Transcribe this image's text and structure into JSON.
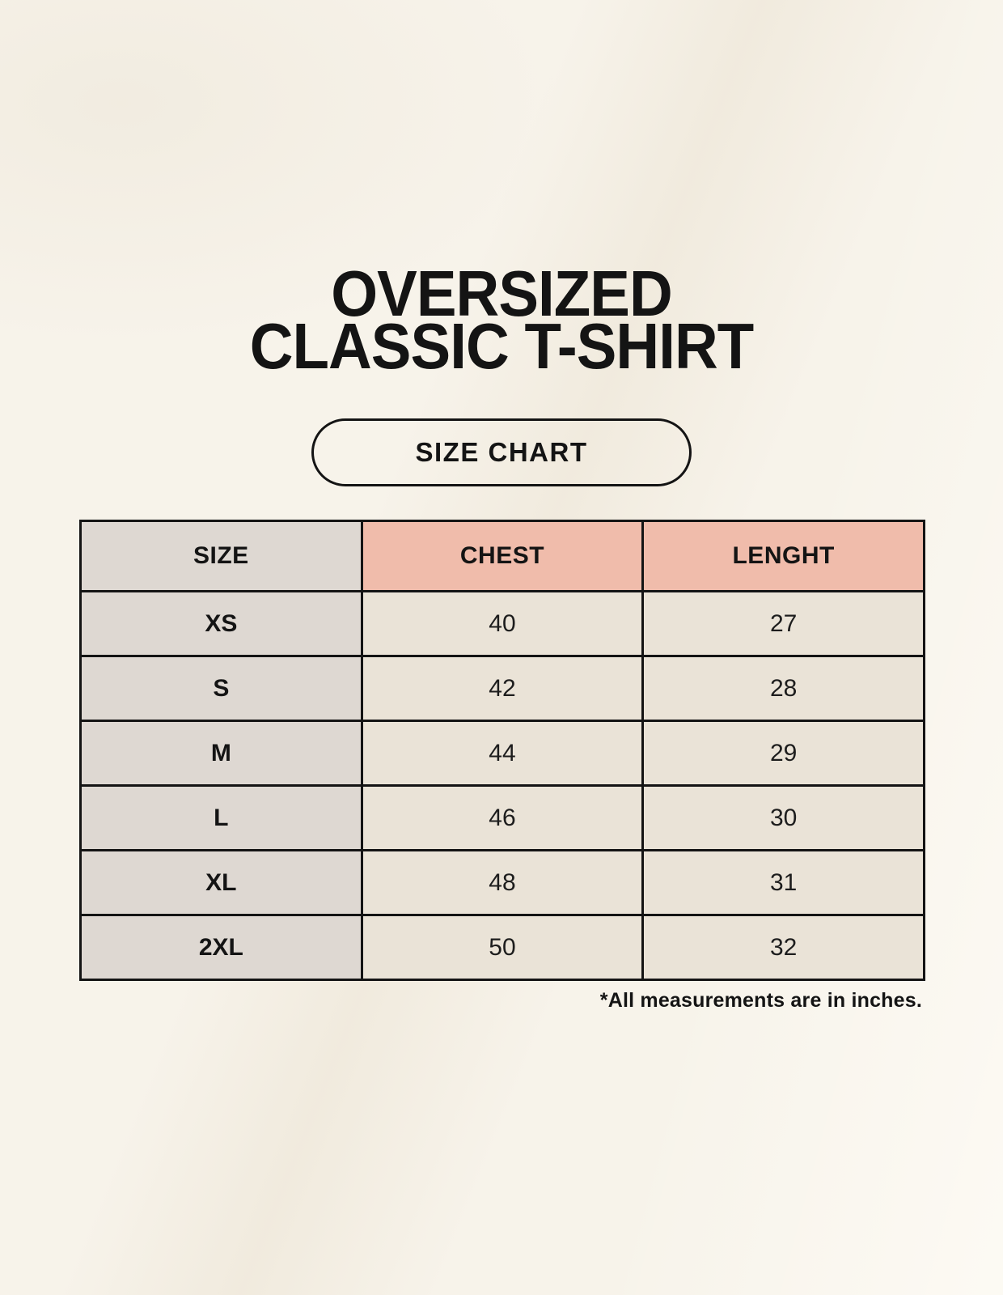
{
  "page": {
    "title_line1": "OVERSIZED",
    "title_line2": "CLASSIC T-SHIRT",
    "size_chart_button": "SIZE CHART",
    "footnote": "*All measurements are in inches."
  },
  "colors": {
    "background": "#f7f3ea",
    "accent_salmon": "#f0bcab",
    "gray_column": "#ded8d2",
    "cream_cell": "#eae3d7",
    "table_border": "#141414",
    "text": "#141414"
  },
  "chart_data": {
    "type": "table",
    "title": "OVERSIZED CLASSIC T-SHIRT",
    "subtitle": "SIZE CHART",
    "columns": [
      "SIZE",
      "CHEST",
      "LENGHT"
    ],
    "rows": [
      [
        "XS",
        40,
        27
      ],
      [
        "S",
        42,
        28
      ],
      [
        "M",
        44,
        29
      ],
      [
        "L",
        46,
        30
      ],
      [
        "XL",
        48,
        31
      ],
      [
        "2XL",
        50,
        32
      ]
    ],
    "units": "inches",
    "units_note": "*All measurements are in inches."
  }
}
